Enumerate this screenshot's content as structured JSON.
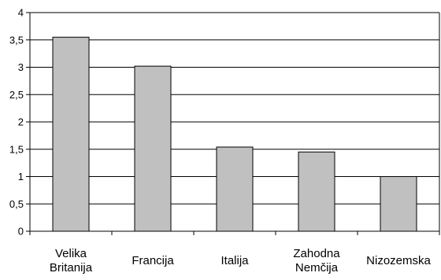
{
  "chart_data": {
    "type": "bar",
    "title": "",
    "xlabel": "",
    "ylabel": "",
    "categories": [
      [
        "Velika",
        "Britanija"
      ],
      [
        "Francija"
      ],
      [
        "Italija"
      ],
      [
        "Zahodna",
        "Nemčija"
      ],
      [
        "Nizozemska"
      ]
    ],
    "values": [
      3.55,
      3.02,
      1.54,
      1.45,
      1.0
    ],
    "ylim": [
      0,
      4
    ],
    "yticks": [
      "0",
      "0,5",
      "1",
      "1,5",
      "2",
      "2,5",
      "3",
      "3,5",
      "4"
    ],
    "grid": true,
    "legend": "none",
    "colors": {
      "bar_fill": "#c0c0c0",
      "bar_stroke": "#000000",
      "grid": "#000000",
      "axis": "#000000"
    }
  }
}
